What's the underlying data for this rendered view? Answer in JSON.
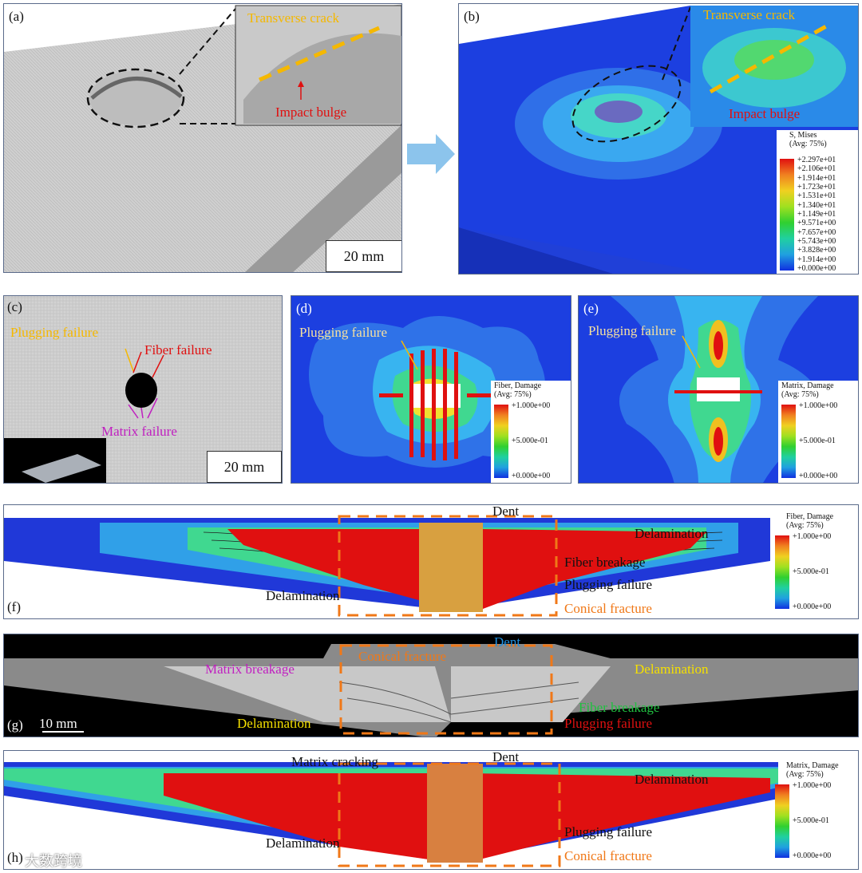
{
  "panels": {
    "a": {
      "label": "(a)",
      "crack": "Transverse crack",
      "bulge": "Impact bulge",
      "scale": "20 mm"
    },
    "b": {
      "label": "(b)",
      "crack": "Transverse crack",
      "bulge": "Impact bulge",
      "legend_title1": "S, Mises",
      "legend_title2": "(Avg: 75%)",
      "legend_values": [
        "+2.297e+01",
        "+2.106e+01",
        "+1.914e+01",
        "+1.723e+01",
        "+1.531e+01",
        "+1.340e+01",
        "+1.149e+01",
        "+9.571e+00",
        "+7.657e+00",
        "+5.743e+00",
        "+3.828e+00",
        "+1.914e+00",
        "+0.000e+00"
      ]
    },
    "c": {
      "label": "(c)",
      "plugging": "Plugging failure",
      "fiber": "Fiber failure",
      "matrix": "Matrix failure",
      "scale": "20 mm"
    },
    "d": {
      "label": "(d)",
      "plugging": "Plugging failure",
      "legend_title1": "Fiber, Damage",
      "legend_title2": "(Avg: 75%)",
      "legend_values": [
        "+1.000e+00",
        "+5.000e-01",
        "+0.000e+00"
      ]
    },
    "e": {
      "label": "(e)",
      "plugging": "Plugging failure",
      "legend_title1": "Matrix, Damage",
      "legend_title2": "(Avg: 75%)",
      "legend_values": [
        "+1.000e+00",
        "+5.000e-01",
        "+0.000e+00"
      ]
    },
    "f": {
      "label": "(f)",
      "dent": "Dent",
      "delam_right": "Delamination",
      "fiber": "Fiber breakage",
      "plugging": "Plugging failure",
      "conical": "Conical fracture",
      "delam_left": "Delamination",
      "legend_title1": "Fiber, Damage",
      "legend_title2": "(Avg: 75%)",
      "legend_values": [
        "+1.000e+00",
        "+5.000e-01",
        "+0.000e+00"
      ]
    },
    "g": {
      "label": "(g)",
      "scale": "10 mm",
      "dent": "Dent",
      "conical": "Conical fracture",
      "matrix": "Matrix breakage",
      "delam_right": "Delamination",
      "fiber": "Fiber breakage",
      "delam_left": "Delamination",
      "plugging": "Plugging failure"
    },
    "h": {
      "label": "(h)",
      "matrix": "Matrix cracking",
      "dent": "Dent",
      "delam_right": "Delamination",
      "delam_left": "Delamination",
      "plugging": "Plugging failure",
      "conical": "Conical fracture",
      "legend_title1": "Matrix, Damage",
      "legend_title2": "(Avg: 75%)",
      "legend_values": [
        "+1.000e+00",
        "+5.000e-01",
        "+0.000e+00"
      ]
    }
  },
  "watermark": "大数跨境",
  "colors": {
    "yellow": "#f5b800",
    "red": "#e01010",
    "magenta": "#c020c0",
    "orange": "#f07818",
    "blue": "#1e8fe0",
    "green": "#20c040"
  }
}
